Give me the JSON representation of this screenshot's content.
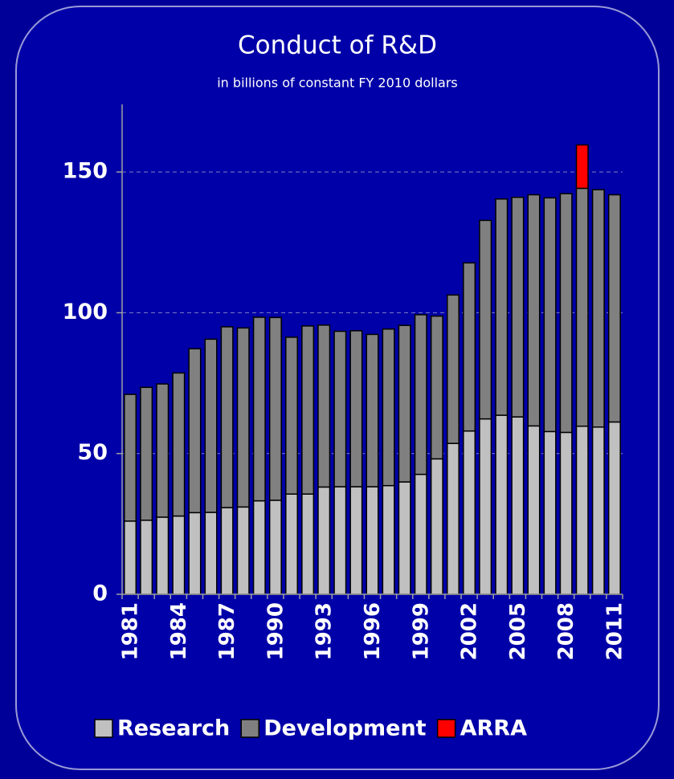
{
  "chart_data": {
    "type": "stacked_bar",
    "title": "Conduct of R&D",
    "subtitle": "in billions of constant FY 2010 dollars",
    "categories": [
      "1981",
      null,
      null,
      "1984",
      null,
      null,
      "1987",
      null,
      null,
      "1990",
      null,
      null,
      "1993",
      null,
      null,
      "1996",
      null,
      null,
      "1999",
      null,
      null,
      "2002",
      null,
      null,
      "2005",
      null,
      null,
      "2008",
      null,
      null,
      "2011"
    ],
    "series": [
      {
        "name": "Research",
        "color": "#c0c0c0",
        "values": [
          26,
          26.3,
          27.4,
          27.8,
          29,
          29.1,
          30.8,
          31,
          33.2,
          33.4,
          35.6,
          35.6,
          38.1,
          38.2,
          38.2,
          38.2,
          38.6,
          39.9,
          42.6,
          48.1,
          53.6,
          58,
          62.3,
          63.6,
          63,
          59.8,
          57.8,
          57.5,
          59.7,
          59.4,
          61.2
        ]
      },
      {
        "name": "Development",
        "color": "#808080",
        "values": [
          45,
          47.2,
          47.3,
          50.8,
          58.2,
          61.5,
          64.2,
          63.6,
          65.2,
          64.9,
          55.7,
          59.7,
          57.5,
          55.2,
          55.4,
          54.1,
          55.6,
          55.6,
          56.7,
          50.7,
          52.7,
          59.7,
          70.5,
          76.8,
          78,
          82.1,
          83,
          84.8,
          84.5,
          84.3,
          80.7
        ]
      },
      {
        "name": "ARRA",
        "color": "#ff0000",
        "values": [
          null,
          null,
          null,
          null,
          null,
          null,
          null,
          null,
          null,
          null,
          null,
          null,
          null,
          null,
          null,
          null,
          null,
          null,
          null,
          null,
          null,
          null,
          null,
          null,
          null,
          null,
          null,
          null,
          15.4,
          null,
          null
        ]
      }
    ],
    "ylim": [
      0,
      174
    ],
    "yticks": [
      0,
      50,
      100,
      150
    ],
    "grid": true
  }
}
